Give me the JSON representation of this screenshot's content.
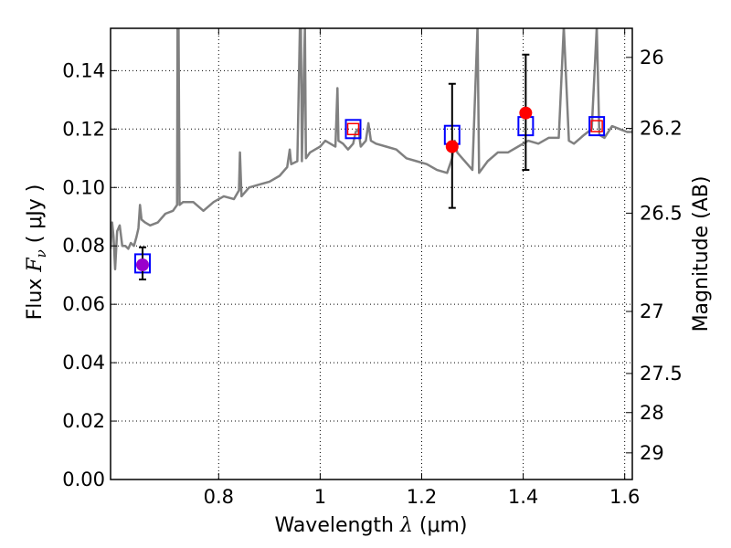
{
  "chart_data": {
    "type": "scatter",
    "xlabel": {
      "prefix": "Wavelength ",
      "symbol": "λ",
      "units": " (μm)"
    },
    "ylabel": {
      "prefix": "Flux ",
      "symbol": "F",
      "subscript": "ν",
      "units": " ( μJy )"
    },
    "y2label": "Magnitude (AB)",
    "xlim": [
      0.587,
      1.615
    ],
    "ylim": [
      0.0,
      0.1545
    ],
    "x_ticks": [
      0.8,
      1.0,
      1.2,
      1.4,
      1.6
    ],
    "x_tick_labels": [
      "0.8",
      "1",
      "1.2",
      "1.4",
      "1.6"
    ],
    "y_ticks": [
      0.0,
      0.02,
      0.04,
      0.06,
      0.08,
      0.1,
      0.12,
      0.14
    ],
    "y_tick_labels": [
      "0.00",
      "0.02",
      "0.04",
      "0.06",
      "0.08",
      "0.10",
      "0.12",
      "0.14"
    ],
    "mag_ticks": [
      26,
      26.2,
      26.5,
      27,
      27.5,
      28,
      29
    ],
    "mag_tick_labels": [
      "26",
      "26.2",
      "26.5",
      "27",
      "27.5",
      "28",
      "29"
    ],
    "grid": true,
    "series": [
      {
        "name": "model spectrum",
        "type": "line",
        "color": "#808080",
        "points": [
          [
            0.587,
            0.079
          ],
          [
            0.59,
            0.088
          ],
          [
            0.593,
            0.083
          ],
          [
            0.596,
            0.072
          ],
          [
            0.6,
            0.085
          ],
          [
            0.605,
            0.087
          ],
          [
            0.61,
            0.08
          ],
          [
            0.616,
            0.08
          ],
          [
            0.622,
            0.079
          ],
          [
            0.627,
            0.081
          ],
          [
            0.633,
            0.08
          ],
          [
            0.638,
            0.083
          ],
          [
            0.642,
            0.086
          ],
          [
            0.645,
            0.094
          ],
          [
            0.648,
            0.089
          ],
          [
            0.655,
            0.088
          ],
          [
            0.665,
            0.087
          ],
          [
            0.68,
            0.088
          ],
          [
            0.695,
            0.091
          ],
          [
            0.71,
            0.092
          ],
          [
            0.718,
            0.094
          ],
          [
            0.719,
            0.155
          ],
          [
            0.721,
            0.155
          ],
          [
            0.723,
            0.094
          ],
          [
            0.73,
            0.095
          ],
          [
            0.75,
            0.095
          ],
          [
            0.77,
            0.092
          ],
          [
            0.79,
            0.095
          ],
          [
            0.81,
            0.097
          ],
          [
            0.83,
            0.096
          ],
          [
            0.84,
            0.099
          ],
          [
            0.842,
            0.112
          ],
          [
            0.845,
            0.097
          ],
          [
            0.86,
            0.1
          ],
          [
            0.88,
            0.101
          ],
          [
            0.9,
            0.102
          ],
          [
            0.92,
            0.104
          ],
          [
            0.935,
            0.107
          ],
          [
            0.94,
            0.113
          ],
          [
            0.943,
            0.108
          ],
          [
            0.955,
            0.109
          ],
          [
            0.96,
            0.155
          ],
          [
            0.962,
            0.155
          ],
          [
            0.964,
            0.109
          ],
          [
            0.97,
            0.155
          ],
          [
            0.972,
            0.11
          ],
          [
            0.98,
            0.112
          ],
          [
            0.99,
            0.113
          ],
          [
            1.0,
            0.114
          ],
          [
            1.01,
            0.116
          ],
          [
            1.02,
            0.115
          ],
          [
            1.03,
            0.114
          ],
          [
            1.034,
            0.134
          ],
          [
            1.036,
            0.116
          ],
          [
            1.045,
            0.115
          ],
          [
            1.055,
            0.113
          ],
          [
            1.065,
            0.115
          ],
          [
            1.07,
            0.119
          ],
          [
            1.075,
            0.12
          ],
          [
            1.08,
            0.114
          ],
          [
            1.09,
            0.116
          ],
          [
            1.095,
            0.122
          ],
          [
            1.1,
            0.116
          ],
          [
            1.11,
            0.115
          ],
          [
            1.13,
            0.114
          ],
          [
            1.15,
            0.113
          ],
          [
            1.17,
            0.11
          ],
          [
            1.19,
            0.109
          ],
          [
            1.21,
            0.108
          ],
          [
            1.23,
            0.106
          ],
          [
            1.25,
            0.105
          ],
          [
            1.26,
            0.11
          ],
          [
            1.265,
            0.116
          ],
          [
            1.27,
            0.112
          ],
          [
            1.28,
            0.11
          ],
          [
            1.29,
            0.108
          ],
          [
            1.3,
            0.106
          ],
          [
            1.31,
            0.155
          ],
          [
            1.313,
            0.105
          ],
          [
            1.33,
            0.109
          ],
          [
            1.35,
            0.112
          ],
          [
            1.37,
            0.112
          ],
          [
            1.39,
            0.114
          ],
          [
            1.41,
            0.116
          ],
          [
            1.43,
            0.115
          ],
          [
            1.45,
            0.117
          ],
          [
            1.47,
            0.117
          ],
          [
            1.48,
            0.155
          ],
          [
            1.49,
            0.116
          ],
          [
            1.5,
            0.115
          ],
          [
            1.52,
            0.118
          ],
          [
            1.535,
            0.12
          ],
          [
            1.545,
            0.155
          ],
          [
            1.55,
            0.118
          ],
          [
            1.56,
            0.117
          ],
          [
            1.575,
            0.121
          ],
          [
            1.59,
            0.12
          ],
          [
            1.605,
            0.119
          ],
          [
            1.615,
            0.119
          ]
        ]
      },
      {
        "name": "model photometry",
        "type": "square",
        "color": "#0000ff",
        "points": [
          [
            0.65,
            0.074
          ],
          [
            1.065,
            0.12
          ],
          [
            1.26,
            0.118
          ],
          [
            1.405,
            0.121
          ],
          [
            1.545,
            0.121
          ]
        ]
      },
      {
        "name": "observed photometry",
        "type": "errorbar",
        "color": "#ff0000",
        "points": [
          {
            "x": 0.65,
            "y": 0.0735,
            "lo": 0.0685,
            "hi": 0.0795,
            "color": "#9900cc"
          },
          {
            "x": 1.065,
            "y": 0.12,
            "open": true
          },
          {
            "x": 1.26,
            "y": 0.114,
            "lo": 0.093,
            "hi": 0.1355
          },
          {
            "x": 1.405,
            "y": 0.1255,
            "lo": 0.106,
            "hi": 0.1455
          },
          {
            "x": 1.545,
            "y": 0.121,
            "open": true
          }
        ]
      }
    ]
  }
}
